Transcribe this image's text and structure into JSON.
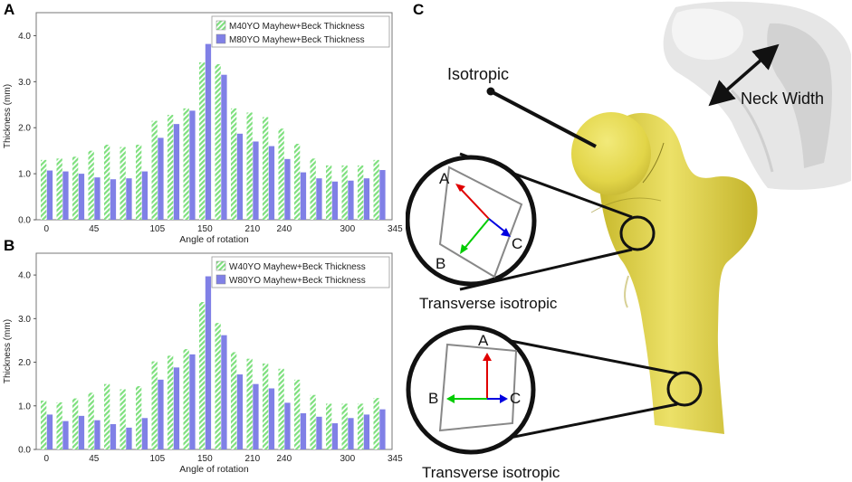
{
  "panels": {
    "a": "A",
    "b": "B",
    "c": "C"
  },
  "chart_data": [
    {
      "type": "bar",
      "ylabel": "Thickness (mm)",
      "xlabel": "Angle of rotation",
      "ylim": [
        0,
        4.5
      ],
      "yticks": [
        "0.0",
        "1.0",
        "2.0",
        "3.0",
        "4.0"
      ],
      "ytick_values": [
        0,
        1,
        2,
        3,
        4
      ],
      "xticks": [
        "0",
        "45",
        "105",
        "150",
        "210",
        "240",
        "300",
        "345"
      ],
      "xtick_category_index": [
        0,
        3,
        7,
        10,
        13,
        15,
        19,
        22
      ],
      "legend_position": "top-right",
      "series": [
        {
          "name": "M40YO Mayhew+Beck Thickness",
          "color": "#7ee07e",
          "pattern": "hatched",
          "values": [
            1.3,
            1.33,
            1.37,
            1.5,
            1.63,
            1.58,
            1.63,
            2.15,
            2.28,
            2.42,
            3.42,
            3.38,
            2.42,
            2.33,
            2.23,
            1.98,
            1.65,
            1.33,
            1.18,
            1.18,
            1.18,
            1.3
          ]
        },
        {
          "name": "M80YO Mayhew+Beck Thickness",
          "color": "#8080e6",
          "pattern": "solid",
          "values": [
            1.07,
            1.05,
            1.0,
            0.92,
            0.88,
            0.9,
            1.05,
            1.78,
            2.08,
            2.37,
            3.82,
            3.15,
            1.87,
            1.7,
            1.6,
            1.32,
            1.03,
            0.9,
            0.83,
            0.85,
            0.9,
            1.08
          ]
        }
      ]
    },
    {
      "type": "bar",
      "ylabel": "Thickness (mm)",
      "xlabel": "Angle of rotation",
      "ylim": [
        0,
        4.5
      ],
      "yticks": [
        "0.0",
        "1.0",
        "2.0",
        "3.0",
        "4.0"
      ],
      "ytick_values": [
        0,
        1,
        2,
        3,
        4
      ],
      "xticks": [
        "0",
        "45",
        "105",
        "150",
        "210",
        "240",
        "300",
        "345"
      ],
      "xtick_category_index": [
        0,
        3,
        7,
        10,
        13,
        15,
        19,
        22
      ],
      "legend_position": "top-right",
      "series": [
        {
          "name": "W40YO Mayhew+Beck Thickness",
          "color": "#7ee07e",
          "pattern": "hatched",
          "values": [
            1.12,
            1.08,
            1.17,
            1.3,
            1.5,
            1.38,
            1.45,
            2.02,
            2.15,
            2.3,
            3.38,
            2.9,
            2.23,
            2.08,
            1.97,
            1.85,
            1.6,
            1.25,
            1.05,
            1.05,
            1.05,
            1.18
          ]
        },
        {
          "name": "W80YO Mayhew+Beck Thickness",
          "color": "#8080e6",
          "pattern": "solid",
          "values": [
            0.8,
            0.65,
            0.77,
            0.67,
            0.58,
            0.5,
            0.72,
            1.6,
            1.88,
            2.18,
            3.97,
            2.62,
            1.72,
            1.5,
            1.4,
            1.07,
            0.83,
            0.75,
            0.6,
            0.72,
            0.8,
            0.92
          ]
        }
      ]
    }
  ],
  "diagram": {
    "isotropic_label": "Isotropic",
    "neck_width_label": "Neck Width",
    "transverse_label_1": "Transverse isotropic",
    "transverse_label_2": "Transverse isotropic",
    "axis_a": "A",
    "axis_b": "B",
    "axis_c": "C",
    "colors": {
      "bone": "#e4d84a",
      "bone_shadow": "#c9bb2a",
      "arrow_a": "#e00000",
      "arrow_b": "#00cc00",
      "arrow_c": "#0000e0"
    }
  }
}
